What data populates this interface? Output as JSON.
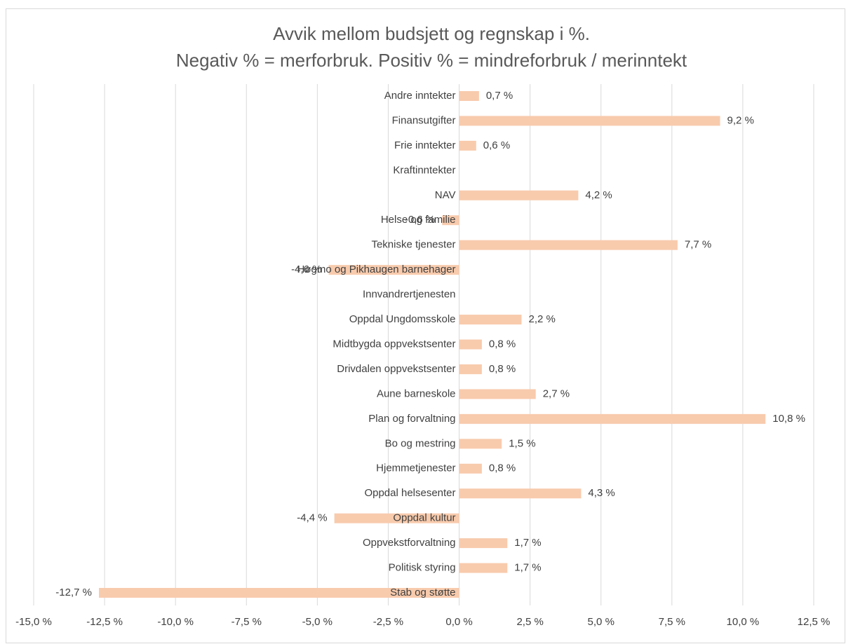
{
  "chart_data": {
    "type": "bar",
    "orientation": "horizontal",
    "title": "Avvik mellom budsjett og regnskap i %.",
    "subtitle": "Negativ % = merforbruk. Positiv % = mindreforbruk / merinntekt",
    "categories": [
      "Andre inntekter",
      "Finansutgifter",
      "Frie inntekter",
      "Kraftinntekter",
      "NAV",
      "Helse og familie",
      "Tekniske tjenester",
      "Høgmo og Pikhaugen barnehager",
      "Innvandrertjenesten",
      "Oppdal Ungdomsskole",
      "Midtbygda oppvekstsenter",
      "Drivdalen oppvekstsenter",
      "Aune barneskole",
      "Plan og forvaltning",
      "Bo og mestring",
      "Hjemmetjenester",
      "Oppdal helsesenter",
      "Oppdal kultur",
      "Oppvekstforvaltning",
      "Politisk styring",
      "Stab og støtte"
    ],
    "values": [
      0.7,
      9.2,
      0.6,
      null,
      4.2,
      -0.6,
      7.7,
      -4.6,
      null,
      2.2,
      0.8,
      0.8,
      2.7,
      10.8,
      1.5,
      0.8,
      4.3,
      -4.4,
      1.7,
      1.7,
      -12.7
    ],
    "value_labels": [
      "0,7 %",
      "9,2 %",
      "0,6 %",
      null,
      "4,2 %",
      "-0,6 %",
      "7,7 %",
      "-4,6 %",
      null,
      "2,2 %",
      "0,8 %",
      "0,8 %",
      "2,7 %",
      "10,8 %",
      "1,5 %",
      "0,8 %",
      "4,3 %",
      "-4,4 %",
      "1,7 %",
      "1,7 %",
      "-12,7 %"
    ],
    "color": "#f8cbad",
    "xlim": [
      -15,
      12.5
    ],
    "xticks": [
      {
        "value": -15,
        "label": "-15,0 %"
      },
      {
        "value": -12.5,
        "label": "-12,5 %"
      },
      {
        "value": -10,
        "label": "-10,0 %"
      },
      {
        "value": -7.5,
        "label": "-7,5 %"
      },
      {
        "value": -5,
        "label": "-5,0 %"
      },
      {
        "value": -2.5,
        "label": "-2,5 %"
      },
      {
        "value": 0,
        "label": "0,0 %"
      },
      {
        "value": 2.5,
        "label": "2,5 %"
      },
      {
        "value": 5,
        "label": "5,0 %"
      },
      {
        "value": 7.5,
        "label": "7,5 %"
      },
      {
        "value": 10,
        "label": "10,0 %"
      },
      {
        "value": 12.5,
        "label": "12,5 %"
      }
    ],
    "grid": true
  }
}
